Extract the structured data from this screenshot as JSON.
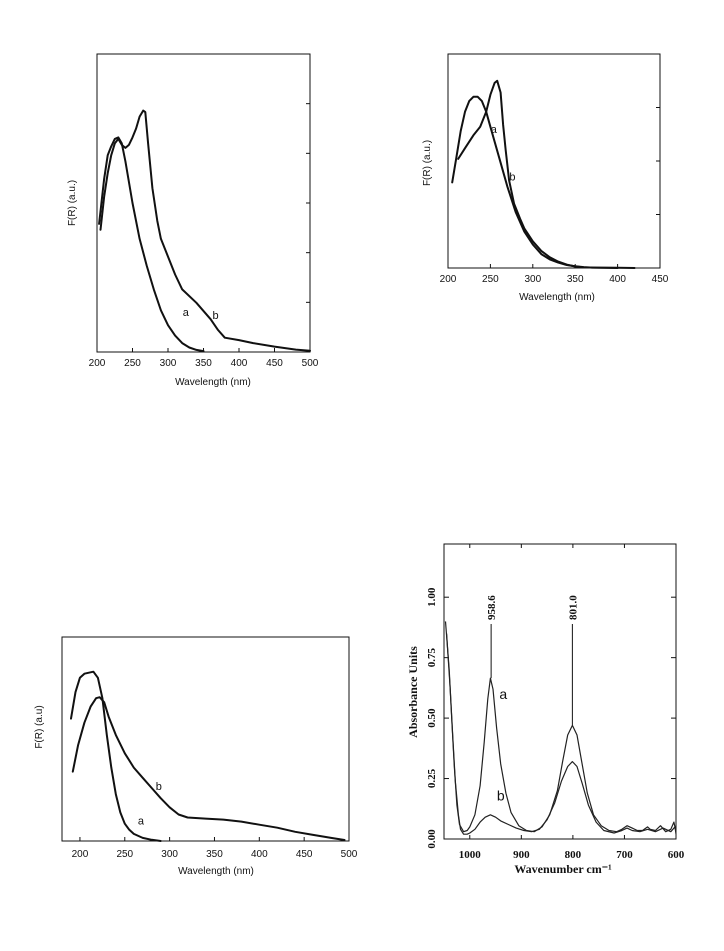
{
  "chart_data": [
    {
      "type": "line",
      "xlabel": "Wavelength (nm)",
      "ylabel": "F(R) (a.u.)",
      "xlim": [
        200,
        500
      ],
      "xticks": [
        "200",
        "250",
        "300",
        "350",
        "400",
        "450",
        "500"
      ],
      "ylim": [
        0,
        1
      ],
      "series": [
        {
          "name": "a",
          "points": [
            [
              203,
              0.43
            ],
            [
              210,
              0.58
            ],
            [
              215,
              0.66
            ],
            [
              220,
              0.69
            ],
            [
              225,
              0.715
            ],
            [
              230,
              0.72
            ],
            [
              235,
              0.7
            ],
            [
              240,
              0.64
            ],
            [
              250,
              0.5
            ],
            [
              260,
              0.38
            ],
            [
              270,
              0.29
            ],
            [
              280,
              0.21
            ],
            [
              290,
              0.14
            ],
            [
              300,
              0.09
            ],
            [
              310,
              0.055
            ],
            [
              320,
              0.03
            ],
            [
              330,
              0.015
            ],
            [
              340,
              0.007
            ],
            [
              350,
              0.003
            ]
          ]
        },
        {
          "name": "b",
          "points": [
            [
              205,
              0.41
            ],
            [
              210,
              0.52
            ],
            [
              215,
              0.6
            ],
            [
              220,
              0.66
            ],
            [
              225,
              0.7
            ],
            [
              230,
              0.715
            ],
            [
              235,
              0.695
            ],
            [
              240,
              0.685
            ],
            [
              245,
              0.695
            ],
            [
              250,
              0.72
            ],
            [
              255,
              0.75
            ],
            [
              260,
              0.79
            ],
            [
              265,
              0.81
            ],
            [
              268,
              0.805
            ],
            [
              272,
              0.7
            ],
            [
              278,
              0.55
            ],
            [
              285,
              0.44
            ],
            [
              290,
              0.38
            ],
            [
              300,
              0.32
            ],
            [
              310,
              0.26
            ],
            [
              320,
              0.21
            ],
            [
              340,
              0.165
            ],
            [
              360,
              0.11
            ],
            [
              370,
              0.075
            ],
            [
              380,
              0.048
            ],
            [
              400,
              0.04
            ],
            [
              420,
              0.03
            ],
            [
              450,
              0.018
            ],
            [
              480,
              0.008
            ],
            [
              500,
              0.004
            ]
          ]
        }
      ],
      "annotations": [
        {
          "text": "a",
          "x": 325,
          "y": 0.12
        },
        {
          "text": "b",
          "x": 367,
          "y": 0.11
        }
      ]
    },
    {
      "type": "line",
      "xlabel": "Wavelength (nm)",
      "ylabel": "F(R) (a.u.)",
      "xlim": [
        200,
        450
      ],
      "xticks": [
        "200",
        "250",
        "300",
        "350",
        "400",
        "450"
      ],
      "ylim": [
        0,
        1
      ],
      "series": [
        {
          "name": "a",
          "points": [
            [
              205,
              0.4
            ],
            [
              210,
              0.52
            ],
            [
              215,
              0.64
            ],
            [
              220,
              0.73
            ],
            [
              225,
              0.78
            ],
            [
              230,
              0.8
            ],
            [
              235,
              0.8
            ],
            [
              240,
              0.78
            ],
            [
              245,
              0.73
            ],
            [
              250,
              0.66
            ],
            [
              260,
              0.52
            ],
            [
              270,
              0.38
            ],
            [
              280,
              0.26
            ],
            [
              290,
              0.17
            ],
            [
              300,
              0.11
            ],
            [
              310,
              0.065
            ],
            [
              320,
              0.04
            ],
            [
              330,
              0.025
            ],
            [
              340,
              0.014
            ],
            [
              350,
              0.008
            ],
            [
              360,
              0.004
            ],
            [
              370,
              0.002
            ],
            [
              400,
              0.001
            ],
            [
              420,
              0.0
            ]
          ]
        },
        {
          "name": "b",
          "points": [
            [
              212,
              0.51
            ],
            [
              220,
              0.56
            ],
            [
              230,
              0.62
            ],
            [
              238,
              0.66
            ],
            [
              245,
              0.73
            ],
            [
              250,
              0.81
            ],
            [
              255,
              0.865
            ],
            [
              258,
              0.875
            ],
            [
              262,
              0.82
            ],
            [
              265,
              0.67
            ],
            [
              268,
              0.55
            ],
            [
              272,
              0.41
            ],
            [
              278,
              0.3
            ],
            [
              285,
              0.23
            ],
            [
              290,
              0.185
            ],
            [
              300,
              0.125
            ],
            [
              310,
              0.08
            ],
            [
              320,
              0.05
            ],
            [
              330,
              0.03
            ],
            [
              340,
              0.016
            ],
            [
              350,
              0.007
            ],
            [
              360,
              0.003
            ],
            [
              400,
              0.0
            ]
          ]
        }
      ],
      "annotations": [
        {
          "text": "a",
          "x": 254,
          "y": 0.63
        },
        {
          "text": "b",
          "x": 276,
          "y": 0.41
        }
      ]
    },
    {
      "type": "line",
      "xlabel": "Wavelength (nm)",
      "ylabel": "F(R)  (a.u)",
      "xlim": [
        180,
        500
      ],
      "xticks": [
        "200",
        "250",
        "300",
        "350",
        "400",
        "450",
        "500"
      ],
      "ylim": [
        0,
        1
      ],
      "series": [
        {
          "name": "a",
          "points": [
            [
              190,
              0.6
            ],
            [
              195,
              0.73
            ],
            [
              200,
              0.8
            ],
            [
              205,
              0.82
            ],
            [
              210,
              0.825
            ],
            [
              215,
              0.83
            ],
            [
              220,
              0.8
            ],
            [
              225,
              0.7
            ],
            [
              230,
              0.52
            ],
            [
              235,
              0.36
            ],
            [
              240,
              0.23
            ],
            [
              245,
              0.14
            ],
            [
              250,
              0.085
            ],
            [
              255,
              0.055
            ],
            [
              260,
              0.035
            ],
            [
              270,
              0.015
            ],
            [
              280,
              0.006
            ],
            [
              290,
              0.0
            ]
          ]
        },
        {
          "name": "b",
          "points": [
            [
              192,
              0.34
            ],
            [
              198,
              0.47
            ],
            [
              205,
              0.58
            ],
            [
              212,
              0.66
            ],
            [
              218,
              0.7
            ],
            [
              222,
              0.705
            ],
            [
              227,
              0.68
            ],
            [
              232,
              0.61
            ],
            [
              240,
              0.52
            ],
            [
              250,
              0.43
            ],
            [
              260,
              0.36
            ],
            [
              270,
              0.31
            ],
            [
              280,
              0.26
            ],
            [
              290,
              0.21
            ],
            [
              300,
              0.165
            ],
            [
              310,
              0.13
            ],
            [
              320,
              0.115
            ],
            [
              340,
              0.11
            ],
            [
              360,
              0.105
            ],
            [
              380,
              0.095
            ],
            [
              400,
              0.08
            ],
            [
              420,
              0.065
            ],
            [
              440,
              0.045
            ],
            [
              460,
              0.03
            ],
            [
              480,
              0.015
            ],
            [
              495,
              0.005
            ]
          ]
        }
      ],
      "annotations": [
        {
          "text": "a",
          "x": 268,
          "y": 0.08
        },
        {
          "text": "b",
          "x": 288,
          "y": 0.25
        }
      ]
    },
    {
      "type": "line",
      "xlabel": "Wavenumber cm⁻¹",
      "ylabel": "Absorbance Units",
      "xlim": [
        1050,
        600
      ],
      "xticks": [
        "1000",
        "900",
        "800",
        "700",
        "600"
      ],
      "ylim": [
        0,
        1.22
      ],
      "yticks": [
        "0.00",
        "0.25",
        "0.50",
        "0.75",
        "1.00"
      ],
      "peaks": [
        "958.6",
        "801.0"
      ],
      "series": [
        {
          "name": "a",
          "points": [
            [
              1047,
              0.9
            ],
            [
              1040,
              0.7
            ],
            [
              1035,
              0.5
            ],
            [
              1030,
              0.3
            ],
            [
              1025,
              0.14
            ],
            [
              1020,
              0.06
            ],
            [
              1012,
              0.03
            ],
            [
              1005,
              0.035
            ],
            [
              1000,
              0.05
            ],
            [
              990,
              0.1
            ],
            [
              980,
              0.22
            ],
            [
              972,
              0.4
            ],
            [
              965,
              0.58
            ],
            [
              960,
              0.665
            ],
            [
              955,
              0.62
            ],
            [
              948,
              0.46
            ],
            [
              940,
              0.31
            ],
            [
              930,
              0.19
            ],
            [
              920,
              0.11
            ],
            [
              905,
              0.055
            ],
            [
              890,
              0.035
            ],
            [
              875,
              0.03
            ],
            [
              860,
              0.05
            ],
            [
              845,
              0.1
            ],
            [
              830,
              0.2
            ],
            [
              820,
              0.32
            ],
            [
              810,
              0.43
            ],
            [
              801,
              0.47
            ],
            [
              792,
              0.43
            ],
            [
              783,
              0.32
            ],
            [
              772,
              0.19
            ],
            [
              760,
              0.1
            ],
            [
              745,
              0.055
            ],
            [
              730,
              0.035
            ],
            [
              715,
              0.03
            ],
            [
              705,
              0.04
            ],
            [
              695,
              0.055
            ],
            [
              685,
              0.045
            ],
            [
              675,
              0.035
            ],
            [
              665,
              0.035
            ],
            [
              655,
              0.05
            ],
            [
              650,
              0.04
            ],
            [
              640,
              0.035
            ],
            [
              630,
              0.055
            ],
            [
              620,
              0.03
            ],
            [
              610,
              0.04
            ],
            [
              604,
              0.07
            ],
            [
              600,
              0.03
            ]
          ]
        },
        {
          "name": "b",
          "points": [
            [
              1045,
              0.85
            ],
            [
              1038,
              0.62
            ],
            [
              1033,
              0.42
            ],
            [
              1028,
              0.24
            ],
            [
              1022,
              0.1
            ],
            [
              1018,
              0.04
            ],
            [
              1012,
              0.02
            ],
            [
              1005,
              0.02
            ],
            [
              1000,
              0.025
            ],
            [
              990,
              0.04
            ],
            [
              980,
              0.07
            ],
            [
              970,
              0.09
            ],
            [
              960,
              0.1
            ],
            [
              950,
              0.09
            ],
            [
              940,
              0.075
            ],
            [
              925,
              0.06
            ],
            [
              910,
              0.045
            ],
            [
              895,
              0.035
            ],
            [
              880,
              0.03
            ],
            [
              865,
              0.04
            ],
            [
              850,
              0.08
            ],
            [
              835,
              0.15
            ],
            [
              822,
              0.24
            ],
            [
              810,
              0.3
            ],
            [
              801,
              0.32
            ],
            [
              792,
              0.3
            ],
            [
              782,
              0.23
            ],
            [
              770,
              0.14
            ],
            [
              755,
              0.07
            ],
            [
              740,
              0.035
            ],
            [
              720,
              0.025
            ],
            [
              705,
              0.035
            ],
            [
              695,
              0.045
            ],
            [
              685,
              0.035
            ],
            [
              670,
              0.03
            ],
            [
              655,
              0.04
            ],
            [
              640,
              0.03
            ],
            [
              625,
              0.045
            ],
            [
              610,
              0.03
            ],
            [
              602,
              0.05
            ],
            [
              600,
              0.02
            ]
          ]
        }
      ],
      "annotations": [
        {
          "text": "a",
          "x": 935,
          "y": 0.58
        },
        {
          "text": "b",
          "x": 940,
          "y": 0.16
        }
      ]
    }
  ]
}
